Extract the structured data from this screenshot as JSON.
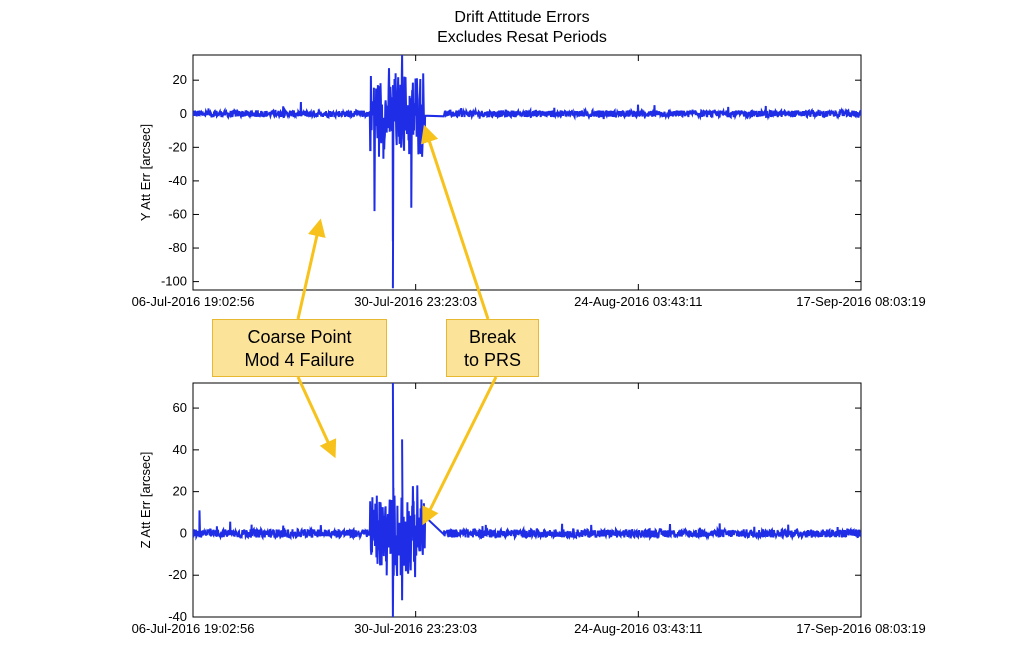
{
  "chart_data": {
    "type": "line",
    "title": "Drift Attitude Errors",
    "subtitle": "Excludes Resat Periods",
    "series_color": "#1f2ee6",
    "annotation_color": "#f7c21c",
    "x_ticks": [
      "06-Jul-2016 19:02:56",
      "30-Jul-2016 23:23:03",
      "24-Aug-2016 03:43:11",
      "17-Sep-2016 08:03:19"
    ],
    "x_range": [
      "06-Jul-2016 19:02:56",
      "17-Sep-2016 08:03:19"
    ],
    "events": {
      "coarse_point_start": "26-Jul-2016",
      "coarse_point_end": "01-Aug-2016",
      "gap_end": "03-Aug-2016"
    },
    "panels": [
      {
        "ylabel": "Y Att Err [arcsec]",
        "ylim": [
          -105,
          35
        ],
        "yticks": [
          20,
          0,
          -20,
          -40,
          -60,
          -80,
          -100
        ],
        "baseline_amplitude": 2,
        "burst_amplitude": 30,
        "extremes": [
          {
            "date": "28-Jul-2016",
            "value": -104
          },
          {
            "date": "26-Jul-2016",
            "value": -58
          },
          {
            "date": "28-Jul-2016",
            "value": -76
          },
          {
            "date": "30-Jul-2016",
            "value": -56
          },
          {
            "date": "29-Jul-2016",
            "value": 35
          }
        ]
      },
      {
        "ylabel": "Z Att Err [arcsec]",
        "ylim": [
          -40,
          72
        ],
        "yticks": [
          60,
          40,
          20,
          0,
          -20,
          -40
        ],
        "baseline_amplitude": 2,
        "burst_amplitude": 25,
        "extremes": [
          {
            "date": "28-Jul-2016",
            "value": 72
          },
          {
            "date": "28-Jul-2016",
            "value": -40
          },
          {
            "date": "29-Jul-2016",
            "value": 45
          },
          {
            "date": "29-Jul-2016",
            "value": -32
          },
          {
            "date": "07-Jul-2016",
            "value": 11
          }
        ]
      }
    ]
  },
  "annotations": {
    "coarse_point_line1": "Coarse Point",
    "coarse_point_line2": "Mod 4 Failure",
    "break_line1": "Break",
    "break_line2": "to PRS"
  }
}
